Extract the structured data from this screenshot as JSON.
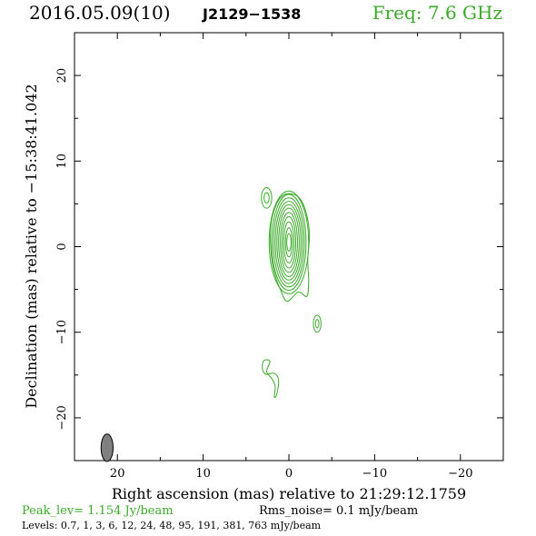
{
  "header": {
    "date": "2016.05.09(10)",
    "source": "J2129−1538",
    "freq": "Freq: 7.6 GHz"
  },
  "footer": {
    "peak": "Peak_lev=  1.154 Jy/beam",
    "rms": "Rms_noise=  0.1 mJy/beam",
    "levels": "Levels: 0.7,   1,   3,   6,   12,   24,   48,   95,  191,  381,  763 mJy/beam"
  },
  "colors": {
    "contour": "#3aaa28",
    "beam_fill": "#808080",
    "axis": "#000000",
    "freq_text": "#3aaa28"
  },
  "chart_data": {
    "type": "contour",
    "xlabel": "Right ascension (mas) relative to 21:29:12.1759",
    "ylabel": "Declination (mas) relative to −15:38:41.042",
    "xlim": [
      25,
      -25
    ],
    "ylim": [
      -25,
      25
    ],
    "x_ticks": [
      20,
      10,
      0,
      -10,
      -20
    ],
    "y_ticks": [
      20,
      10,
      0,
      -10,
      -20
    ],
    "x_tick_labels": [
      "20",
      "10",
      "0",
      "−10",
      "−20"
    ],
    "y_tick_labels": [
      "20",
      "10",
      "0",
      "−10",
      "−20"
    ],
    "contour_levels_mjy": [
      0.7,
      1,
      3,
      6,
      12,
      24,
      48,
      95,
      191,
      381,
      763
    ],
    "core": {
      "center": [
        0,
        0.5
      ],
      "rings": [
        {
          "rx": 2.3,
          "ry": 6.0
        },
        {
          "rx": 2.0,
          "ry": 5.6
        },
        {
          "rx": 1.8,
          "ry": 5.2
        },
        {
          "rx": 1.6,
          "ry": 4.8
        },
        {
          "rx": 1.4,
          "ry": 4.4
        },
        {
          "rx": 1.2,
          "ry": 4.0
        },
        {
          "rx": 1.0,
          "ry": 3.5
        },
        {
          "rx": 0.8,
          "ry": 3.0
        },
        {
          "rx": 0.6,
          "ry": 2.4
        },
        {
          "rx": 0.4,
          "ry": 1.7
        },
        {
          "rx": 0.25,
          "ry": 1.0
        }
      ]
    },
    "outer_envelope": [
      [
        -0.2,
        6.2
      ],
      [
        -1.3,
        5.6
      ],
      [
        -2.0,
        4.0
      ],
      [
        -2.4,
        1.5
      ],
      [
        -2.2,
        -1.5
      ],
      [
        -2.3,
        -4.0
      ],
      [
        -2.1,
        -5.8
      ],
      [
        -1.1,
        -5.3
      ],
      [
        0.2,
        -6.4
      ],
      [
        1.0,
        -5.0
      ],
      [
        1.7,
        -3.0
      ],
      [
        2.1,
        -0.5
      ],
      [
        2.1,
        2.5
      ],
      [
        1.6,
        4.6
      ],
      [
        0.8,
        5.9
      ]
    ],
    "minor_components": [
      {
        "center": [
          2.6,
          5.7
        ],
        "rings": [
          {
            "rx": 0.6,
            "ry": 1.2
          },
          {
            "rx": 0.3,
            "ry": 0.6
          }
        ]
      },
      {
        "center": [
          -3.3,
          -9.0
        ],
        "rings": [
          {
            "rx": 0.45,
            "ry": 1.0
          },
          {
            "rx": 0.2,
            "ry": 0.5
          }
        ]
      }
    ],
    "blob_contour": [
      [
        2.9,
        -13.3
      ],
      [
        2.2,
        -13.4
      ],
      [
        2.6,
        -14.6
      ],
      [
        2.0,
        -15.4
      ],
      [
        1.6,
        -16.3
      ],
      [
        1.7,
        -17.6
      ],
      [
        1.4,
        -17.2
      ],
      [
        1.2,
        -15.6
      ],
      [
        1.7,
        -14.8
      ],
      [
        2.7,
        -14.9
      ],
      [
        3.1,
        -14.2
      ]
    ],
    "beam": {
      "center": [
        21.2,
        -23.5
      ],
      "major": 1.6,
      "minor": 0.7,
      "pa_deg": 0
    }
  }
}
